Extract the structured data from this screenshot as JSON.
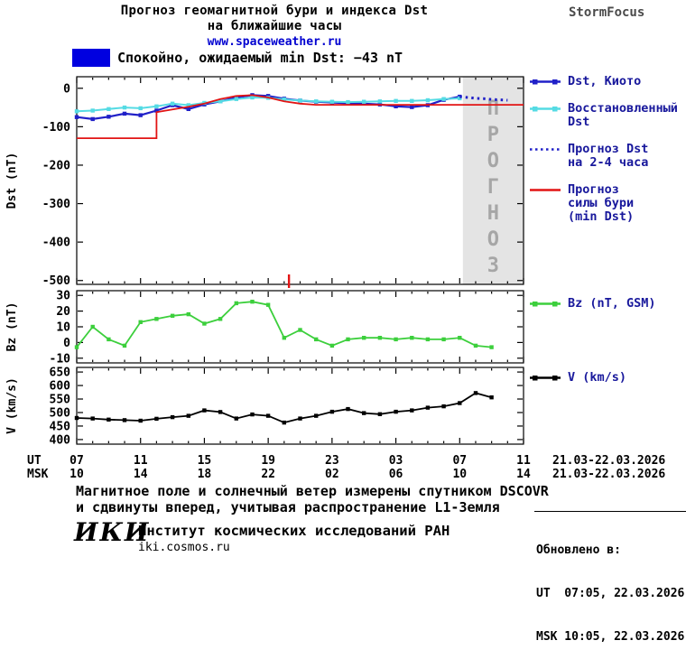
{
  "header": {
    "title_line1": "Прогноз геомагнитной бури и индекса Dst",
    "title_line2": "на ближайшие часы",
    "site_link": "www.spaceweather.ru",
    "brand": "StormFocus",
    "status_text": "Спокойно, ожидаемый min Dst: −43 nT",
    "status_color": "#0000e0"
  },
  "x_axis": {
    "range": [
      7,
      35
    ],
    "tick_hours": [
      7,
      11,
      15,
      19,
      23,
      27,
      31,
      35
    ],
    "ut_prefix": "UT",
    "msk_prefix": "MSK",
    "ut_labels": [
      "07",
      "11",
      "15",
      "19",
      "23",
      "03",
      "07",
      "11"
    ],
    "msk_labels": [
      "10",
      "14",
      "18",
      "22",
      "02",
      "06",
      "10",
      "14"
    ],
    "ut_date": "21.03-22.03.2026",
    "msk_date": "21.03-22.03.2026"
  },
  "chart_data": [
    {
      "id": "dst",
      "type": "line",
      "ylabel": "Dst (nT)",
      "ylim": [
        -510,
        30
      ],
      "yticks": [
        0,
        -100,
        -200,
        -300,
        -400,
        -500
      ],
      "forecast_region": {
        "start_hour": 31.2,
        "label": "ПРОГНОЗ"
      },
      "event_marker_hour": 20.3,
      "series": [
        {
          "key": "dst-kyoto-line",
          "name": "Dst, Киото",
          "color": "#2020c8",
          "marker": "square",
          "width": 2.2,
          "x": [
            7,
            8,
            9,
            10,
            11,
            12,
            13,
            14,
            15,
            16,
            17,
            18,
            19,
            20,
            21,
            22,
            23,
            24,
            25,
            26,
            27,
            28,
            29,
            30,
            31
          ],
          "y": [
            -75,
            -80,
            -74,
            -66,
            -70,
            -58,
            -44,
            -54,
            -42,
            -34,
            -24,
            -18,
            -20,
            -27,
            -32,
            -35,
            -37,
            -39,
            -40,
            -42,
            -47,
            -49,
            -44,
            -30,
            -22
          ]
        },
        {
          "key": "dst-reconstructed-line",
          "name": "Восстановленный Dst",
          "color": "#55dbe4",
          "marker": "square",
          "width": 2,
          "x": [
            7,
            8,
            9,
            10,
            11,
            12,
            13,
            14,
            15,
            16,
            17,
            18,
            19,
            20,
            21,
            22,
            23,
            24,
            25,
            26,
            27,
            28,
            29,
            30,
            31
          ],
          "y": [
            -60,
            -58,
            -54,
            -50,
            -52,
            -47,
            -40,
            -44,
            -38,
            -34,
            -28,
            -24,
            -25,
            -29,
            -32,
            -34,
            -35,
            -36,
            -35,
            -34,
            -33,
            -33,
            -31,
            -28,
            -26
          ]
        },
        {
          "key": "dst-forecast-dotted-line",
          "name": "Прогноз Dst на 2-4 часа",
          "color": "#2020c8",
          "dash": "2.5 4",
          "width": 3,
          "x": [
            31,
            31.5,
            32,
            32.5,
            33,
            33.5,
            34
          ],
          "y": [
            -22,
            -24,
            -26,
            -27,
            -29,
            -30,
            -31
          ]
        },
        {
          "key": "storm-min-forecast-line",
          "name": "Прогноз силы бури (min Dst)",
          "color": "#e21414",
          "width": 1.8,
          "x": [
            7,
            12,
            12,
            13,
            14,
            15,
            16,
            17,
            18,
            19,
            20,
            21,
            22,
            35
          ],
          "y": [
            -130,
            -130,
            -62,
            -55,
            -48,
            -40,
            -28,
            -20,
            -18,
            -24,
            -34,
            -40,
            -43,
            -43
          ]
        }
      ]
    },
    {
      "id": "bz",
      "type": "line",
      "ylabel": "Bz (nT)",
      "ylim": [
        -13,
        33
      ],
      "yticks": [
        30,
        20,
        10,
        0,
        -10
      ],
      "series": [
        {
          "key": "bz-line",
          "name": "Bz (nT, GSM)",
          "color": "#3ccf3c",
          "marker": "square",
          "width": 1.8,
          "x": [
            7,
            8,
            9,
            10,
            11,
            12,
            13,
            14,
            15,
            16,
            17,
            18,
            19,
            20,
            21,
            22,
            23,
            24,
            25,
            26,
            27,
            28,
            29,
            30,
            31,
            32,
            33
          ],
          "y": [
            -3,
            10,
            2,
            -2,
            13,
            15,
            17,
            18,
            12,
            15,
            25,
            26,
            24,
            3,
            8,
            2,
            -2,
            2,
            3,
            3,
            2,
            3,
            2,
            2,
            3,
            -2,
            -3
          ]
        }
      ]
    },
    {
      "id": "v",
      "type": "line",
      "ylabel": "V (km/s)",
      "ylim": [
        383,
        667
      ],
      "yticks": [
        650,
        600,
        550,
        500,
        450,
        400
      ],
      "series": [
        {
          "key": "v-line",
          "name": "V (km/s)",
          "color": "#000000",
          "marker": "square",
          "width": 1.8,
          "x": [
            7,
            8,
            9,
            10,
            11,
            12,
            13,
            14,
            15,
            16,
            17,
            18,
            19,
            20,
            21,
            22,
            23,
            24,
            25,
            26,
            27,
            28,
            29,
            30,
            31,
            32,
            33
          ],
          "y": [
            480,
            478,
            474,
            472,
            470,
            477,
            483,
            488,
            508,
            502,
            478,
            493,
            488,
            463,
            478,
            488,
            503,
            513,
            498,
            494,
            503,
            508,
            518,
            523,
            535,
            572,
            556
          ]
        }
      ]
    }
  ],
  "legends": [
    {
      "id": "legend-dst",
      "items": [
        {
          "key": "dst-kyoto",
          "label": "Dst, Киото",
          "color": "#2020c8",
          "style": "line-squares"
        },
        {
          "key": "dst-reconstructed",
          "label": "Восстановленный\nDst",
          "color": "#55dbe4",
          "style": "line-squares"
        },
        {
          "key": "dst-forecast",
          "label": "Прогноз Dst\nна 2-4 часа",
          "color": "#2020c8",
          "style": "dotted"
        },
        {
          "key": "storm-forecast",
          "label": "Прогноз\nсилы бури\n(min Dst)",
          "color": "#e21414",
          "style": "line"
        }
      ]
    },
    {
      "id": "legend-bz",
      "items": [
        {
          "key": "bz",
          "label": "Bz (nT, GSM)",
          "color": "#3ccf3c",
          "style": "line-squares"
        }
      ]
    },
    {
      "id": "legend-v",
      "items": [
        {
          "key": "v",
          "label": "V (km/s)",
          "color": "#000000",
          "style": "line-squares"
        }
      ]
    }
  ],
  "footer": {
    "note_line1": "Магнитное поле и солнечный ветер измерены спутником DSCOVR",
    "note_line2": "и сдвинуты вперед, учитывая распространение L1-Земля",
    "logo": "ИКИ",
    "institute": "Институт космических исследований РАН",
    "website": "iki.cosmos.ru",
    "updated_label": "Обновлено в:",
    "updated_ut": "UT  07:05, 22.03.2026",
    "updated_msk": "MSK 10:05, 22.03.2026"
  }
}
